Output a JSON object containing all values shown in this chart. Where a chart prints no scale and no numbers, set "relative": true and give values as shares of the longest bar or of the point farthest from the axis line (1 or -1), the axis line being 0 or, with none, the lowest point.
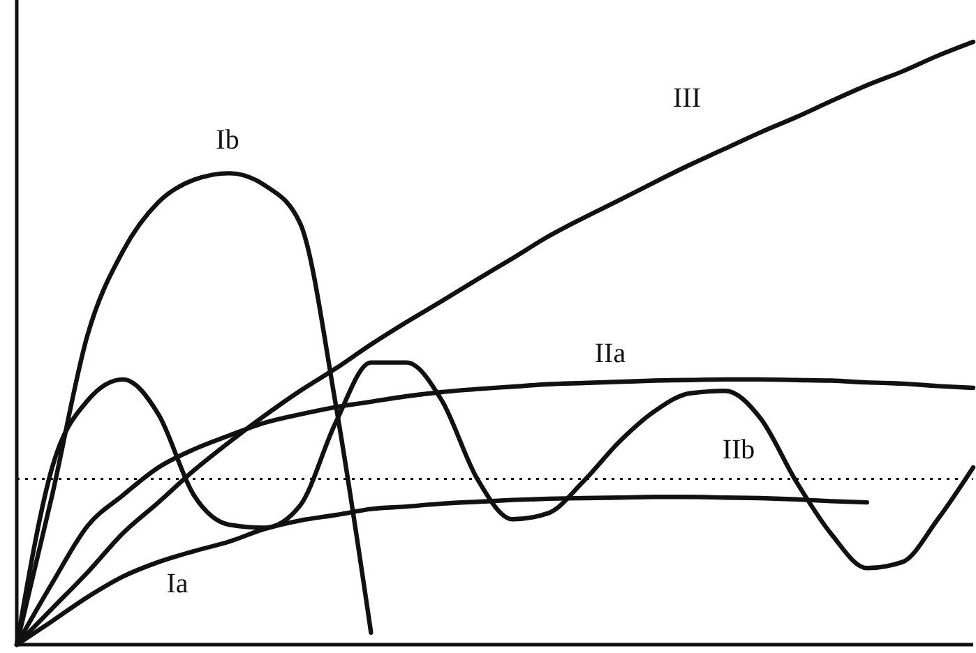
{
  "chart_data": {
    "type": "line",
    "relative": true,
    "categories": [
      null,
      null,
      null,
      null,
      null,
      null,
      null,
      null,
      null,
      null,
      null,
      null,
      null,
      null,
      null,
      null,
      null,
      null,
      null,
      null,
      null,
      null,
      null,
      null,
      null,
      null,
      null,
      null
    ],
    "series": [
      {
        "name": "III",
        "color": "#111111",
        "values": [
          0,
          0.06,
          0.12,
          0.185,
          0.236,
          0.289,
          0.336,
          0.38,
          0.421,
          0.458,
          0.498,
          0.535,
          0.57,
          0.606,
          0.641,
          0.677,
          0.708,
          0.737,
          0.767,
          0.796,
          0.823,
          0.85,
          0.875,
          0.902,
          0.928,
          0.951,
          0.977,
          1
        ]
      },
      {
        "name": "IIa",
        "color": "#111111",
        "values": [
          0,
          0.102,
          0.197,
          0.248,
          0.294,
          0.324,
          0.347,
          0.368,
          0.382,
          0.394,
          0.403,
          0.412,
          0.419,
          0.424,
          0.428,
          0.432,
          0.434,
          0.436,
          0.438,
          0.439,
          0.44,
          0.44,
          0.439,
          0.438,
          0.435,
          0.433,
          0.429,
          0.426
        ]
      },
      {
        "name": "Ia",
        "color": "#111111",
        "values": [
          0,
          0.039,
          0.079,
          0.113,
          0.137,
          0.155,
          0.171,
          0.192,
          0.206,
          0.215,
          0.225,
          0.229,
          0.234,
          0.237,
          0.24,
          0.242,
          0.243,
          0.244,
          0.245,
          0.245,
          0.244,
          0.243,
          0.241,
          0.238,
          0.236,
          null,
          null,
          null
        ]
      },
      {
        "name": "Ib",
        "color": "#111111",
        "values": [
          0,
          0.248,
          0.514,
          0.653,
          0.734,
          0.771,
          0.782,
          0.762,
          0.699,
          0.4,
          0.02,
          null,
          null,
          null,
          null,
          null,
          null,
          null,
          null,
          null,
          null,
          null,
          null,
          null,
          null,
          null,
          null,
          null
        ]
      },
      {
        "name": "IIb",
        "color": "#111111",
        "values": [
          0,
          0.294,
          0.405,
          0.44,
          0.382,
          0.248,
          0.199,
          0.194,
          0.231,
          0.368,
          0.468,
          0.468,
          0.405,
          0.275,
          0.208,
          0.218,
          0.271,
          0.336,
          0.387,
          0.417,
          0.421,
          0.375,
          0.271,
          0.183,
          0.127,
          0.137,
          0.208,
          0.294
        ]
      }
    ],
    "ref_lines": [
      {
        "axis": "y",
        "value": 0.275,
        "line_style": "dotted",
        "color": "#111111"
      }
    ]
  }
}
